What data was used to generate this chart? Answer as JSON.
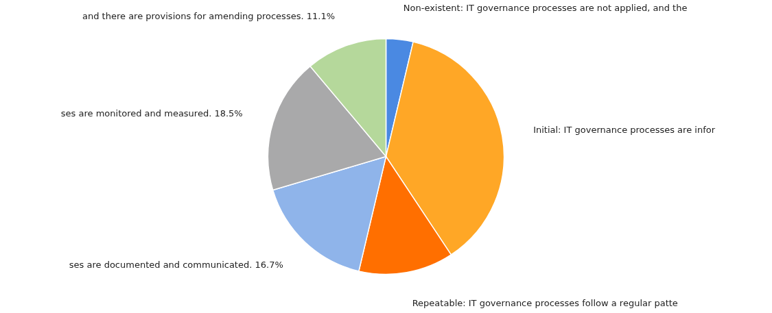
{
  "chart_data": {
    "type": "pie",
    "categories": [
      "Non-existent: IT governance processes are not applied, and the",
      "Initial: IT governance processes are infor",
      "Repeatable: IT governance processes follow a regular patte",
      "ses are documented and communicated. 16.7%",
      "ses are monitored and measured. 18.5%",
      "and there are provisions for amending processes. 11.1%"
    ],
    "values": [
      3.7,
      37.0,
      13.0,
      16.7,
      18.5,
      11.1
    ],
    "colors": [
      "#4a89e2",
      "#ffa726",
      "#ff6f00",
      "#8fb4ea",
      "#a9a9aa",
      "#b5d89b"
    ]
  }
}
